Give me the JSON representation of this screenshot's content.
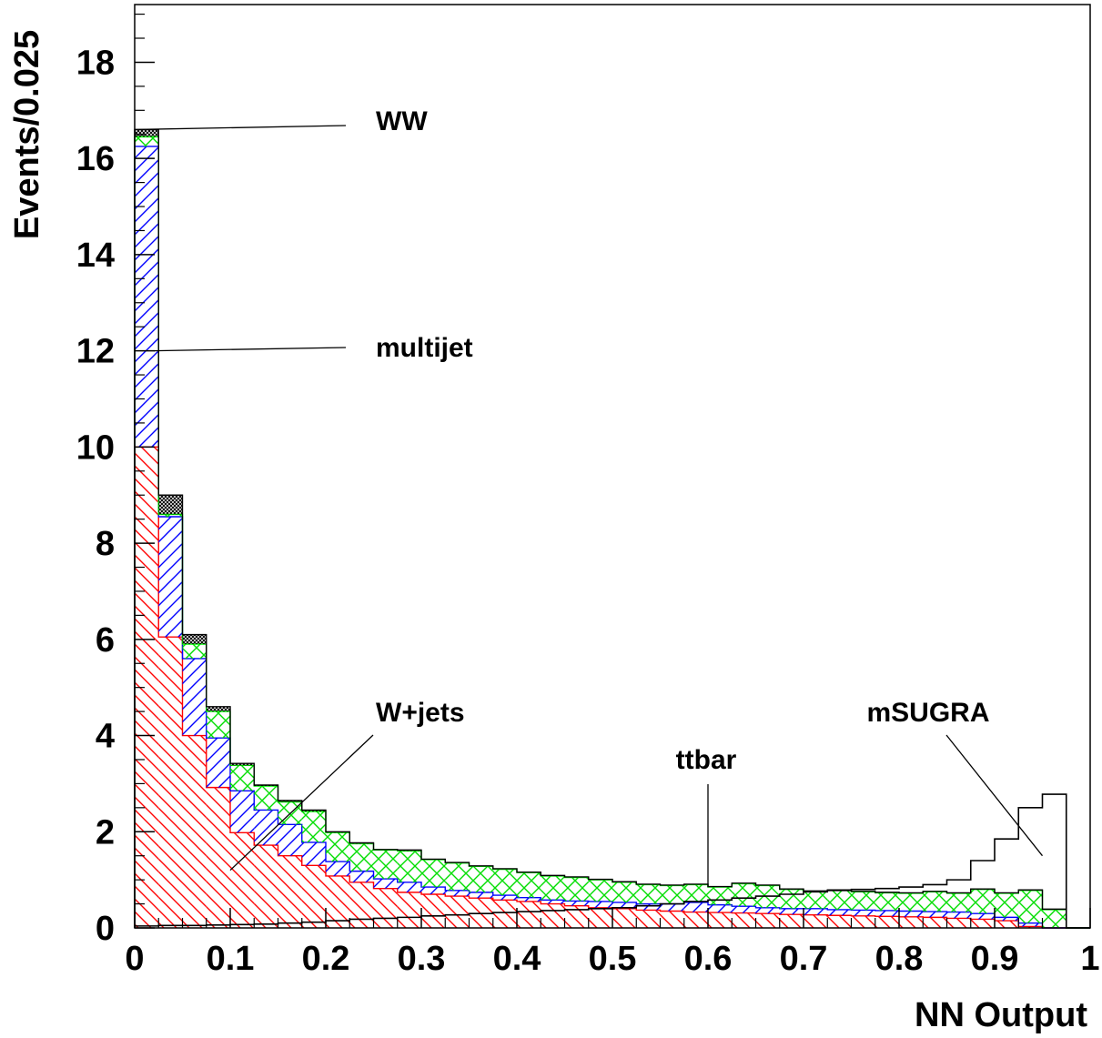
{
  "chart_data": {
    "type": "histogram-stacked",
    "xlabel": "NN Output",
    "ylabel": "Events/0.025",
    "xlim": [
      0,
      1
    ],
    "ylim": [
      0,
      19.2
    ],
    "bin_width": 0.025,
    "x_ticks": [
      {
        "value": 0,
        "label": "0"
      },
      {
        "value": 0.1,
        "label": "0.1"
      },
      {
        "value": 0.2,
        "label": "0.2"
      },
      {
        "value": 0.3,
        "label": "0.3"
      },
      {
        "value": 0.4,
        "label": "0.4"
      },
      {
        "value": 0.5,
        "label": "0.5"
      },
      {
        "value": 0.6,
        "label": "0.6"
      },
      {
        "value": 0.7,
        "label": "0.7"
      },
      {
        "value": 0.8,
        "label": "0.8"
      },
      {
        "value": 0.9,
        "label": "0.9"
      },
      {
        "value": 1,
        "label": "1"
      }
    ],
    "y_ticks": [
      {
        "value": 0,
        "label": "0"
      },
      {
        "value": 2,
        "label": "2"
      },
      {
        "value": 4,
        "label": "4"
      },
      {
        "value": 6,
        "label": "6"
      },
      {
        "value": 8,
        "label": "8"
      },
      {
        "value": 10,
        "label": "10"
      },
      {
        "value": 12,
        "label": "12"
      },
      {
        "value": 14,
        "label": "14"
      },
      {
        "value": 16,
        "label": "16"
      },
      {
        "value": 18,
        "label": "18"
      }
    ],
    "stack_cumulative": [
      {
        "name": "W+jets",
        "color": "#ff0000",
        "hatch": "backslash",
        "values": [
          10.0,
          6.05,
          4.0,
          2.92,
          1.98,
          1.72,
          1.5,
          1.3,
          1.08,
          0.95,
          0.82,
          0.74,
          0.7,
          0.66,
          0.62,
          0.58,
          0.55,
          0.5,
          0.46,
          0.42,
          0.4,
          0.37,
          0.35,
          0.33,
          0.32,
          0.31,
          0.3,
          0.28,
          0.27,
          0.26,
          0.25,
          0.24,
          0.23,
          0.22,
          0.2,
          0.18,
          0.15,
          0.03,
          0.0,
          0.0
        ]
      },
      {
        "name": "multijet",
        "color": "#0000ff",
        "hatch": "slash",
        "values": [
          16.25,
          8.55,
          5.6,
          3.95,
          2.85,
          2.45,
          2.15,
          1.78,
          1.38,
          1.18,
          1.02,
          0.95,
          0.85,
          0.78,
          0.74,
          0.68,
          0.63,
          0.58,
          0.56,
          0.55,
          0.53,
          0.5,
          0.5,
          0.53,
          0.48,
          0.45,
          0.42,
          0.4,
          0.4,
          0.38,
          0.37,
          0.36,
          0.35,
          0.34,
          0.33,
          0.3,
          0.22,
          0.1,
          0.0,
          0.0
        ]
      },
      {
        "name": "ttbar",
        "color": "#00ff00",
        "hatch": "cross",
        "values": [
          16.45,
          8.6,
          5.9,
          4.5,
          3.38,
          2.95,
          2.62,
          2.42,
          1.98,
          1.75,
          1.62,
          1.6,
          1.42,
          1.35,
          1.28,
          1.22,
          1.15,
          1.08,
          1.05,
          1.0,
          0.95,
          0.9,
          0.88,
          0.9,
          0.85,
          0.92,
          0.88,
          0.8,
          0.76,
          0.78,
          0.75,
          0.73,
          0.72,
          0.75,
          0.72,
          0.8,
          0.72,
          0.78,
          0.38,
          0.0
        ]
      },
      {
        "name": "WW",
        "color": "#000000",
        "hatch": "dense-cross",
        "values": [
          16.6,
          9.0,
          6.1,
          4.6,
          3.42,
          2.97,
          2.65,
          2.45,
          2.0,
          1.77,
          1.63,
          1.62,
          1.43,
          1.36,
          1.29,
          1.23,
          1.16,
          1.09,
          1.06,
          1.01,
          0.96,
          0.91,
          0.89,
          0.91,
          0.86,
          0.93,
          0.89,
          0.81,
          0.77,
          0.79,
          0.76,
          0.74,
          0.73,
          0.76,
          0.73,
          0.81,
          0.73,
          0.79,
          0.39,
          0.0
        ]
      }
    ],
    "signal": {
      "name": "mSUGRA",
      "style": "outline",
      "color": "#000000",
      "values": [
        0.04,
        0.05,
        0.05,
        0.06,
        0.07,
        0.08,
        0.1,
        0.12,
        0.15,
        0.18,
        0.2,
        0.22,
        0.25,
        0.27,
        0.3,
        0.32,
        0.34,
        0.36,
        0.38,
        0.4,
        0.42,
        0.46,
        0.5,
        0.55,
        0.58,
        0.62,
        0.66,
        0.7,
        0.75,
        0.78,
        0.8,
        0.82,
        0.85,
        0.9,
        1.0,
        1.4,
        1.85,
        2.5,
        2.78,
        0.0
      ]
    },
    "annotations": [
      {
        "text": "WW",
        "target_x": 0.0,
        "target_y": 16.6
      },
      {
        "text": "multijet",
        "target_x": 0.02,
        "target_y": 12.0
      },
      {
        "text": "W+jets",
        "target_x": 0.1,
        "target_y": 1.2
      },
      {
        "text": "ttbar",
        "target_x": 0.6,
        "target_y": 0.85
      },
      {
        "text": "mSUGRA",
        "target_x": 0.95,
        "target_y": 1.5
      }
    ],
    "grid": false,
    "legend": "none (labels placed as annotations with leader lines)"
  }
}
